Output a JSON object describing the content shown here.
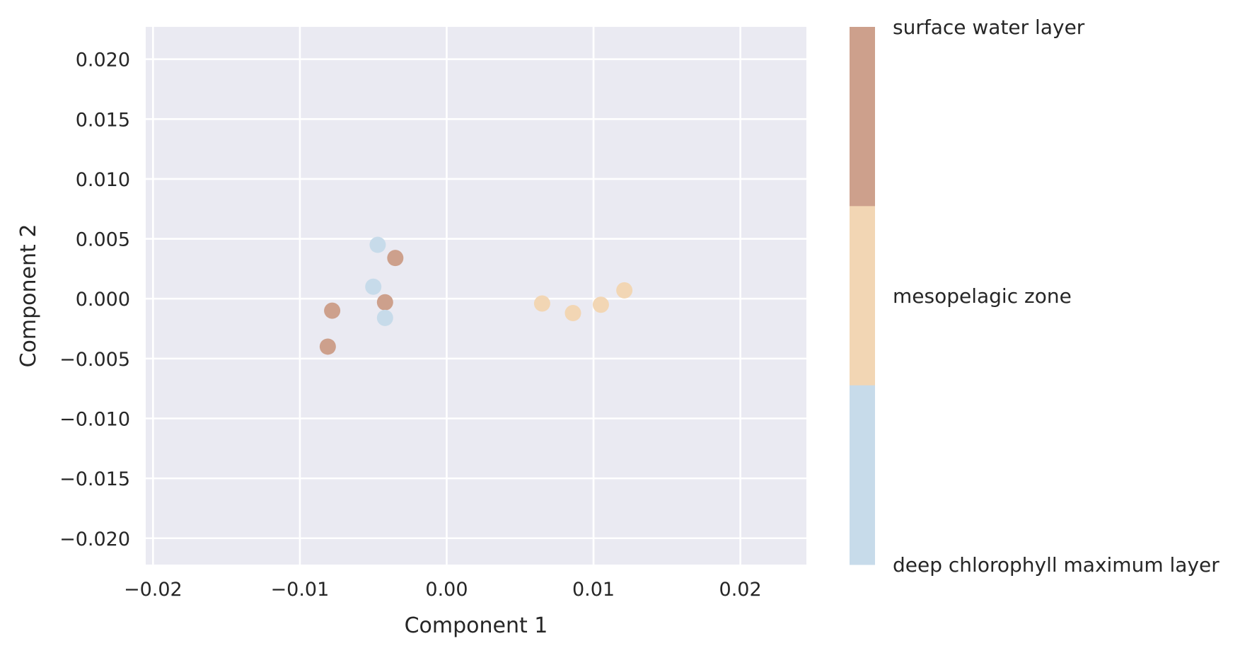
{
  "chart_data": {
    "type": "scatter",
    "xlabel": "Component 1",
    "ylabel": "Component 2",
    "xlim": [
      -0.0205,
      0.0245
    ],
    "ylim": [
      -0.0222,
      0.0227
    ],
    "x_ticks": [
      -0.02,
      -0.01,
      0.0,
      0.01,
      0.02
    ],
    "x_tick_labels": [
      "−0.02",
      "−0.01",
      "0.00",
      "0.01",
      "0.02"
    ],
    "y_ticks": [
      0.02,
      0.015,
      0.01,
      0.005,
      0.0,
      -0.005,
      -0.01,
      -0.015,
      -0.02
    ],
    "y_tick_labels": [
      "0.020",
      "0.015",
      "0.010",
      "0.005",
      "0.000",
      "−0.005",
      "−0.010",
      "−0.015",
      "−0.020"
    ],
    "grid": true,
    "legend_position": "right",
    "series": [
      {
        "name": "surface water layer",
        "color": "#cda08c",
        "points": [
          {
            "x": -0.0035,
            "y": 0.0034
          },
          {
            "x": -0.0042,
            "y": -0.0003
          },
          {
            "x": -0.0078,
            "y": -0.001
          },
          {
            "x": -0.0081,
            "y": -0.004
          }
        ]
      },
      {
        "name": "mesopelagic zone",
        "color": "#f2d6b4",
        "points": [
          {
            "x": 0.0065,
            "y": -0.0004
          },
          {
            "x": 0.0086,
            "y": -0.0012
          },
          {
            "x": 0.0105,
            "y": -0.0005
          },
          {
            "x": 0.0121,
            "y": 0.0007
          }
        ]
      },
      {
        "name": "deep chlorophyll maximum layer",
        "color": "#c7dbea",
        "points": [
          {
            "x": -0.0047,
            "y": 0.0045
          },
          {
            "x": -0.005,
            "y": 0.001
          },
          {
            "x": -0.0042,
            "y": -0.0016
          }
        ]
      }
    ],
    "colorbar": {
      "labels": [
        "surface water layer",
        "mesopelagic zone",
        "deep chlorophyll maximum layer"
      ],
      "colors": [
        "#cda08c",
        "#f2d6b4",
        "#c7dbea"
      ]
    }
  },
  "style": {
    "plot_background": "#eaeaf2",
    "grid_color": "#ffffff",
    "text_color": "#262626"
  }
}
